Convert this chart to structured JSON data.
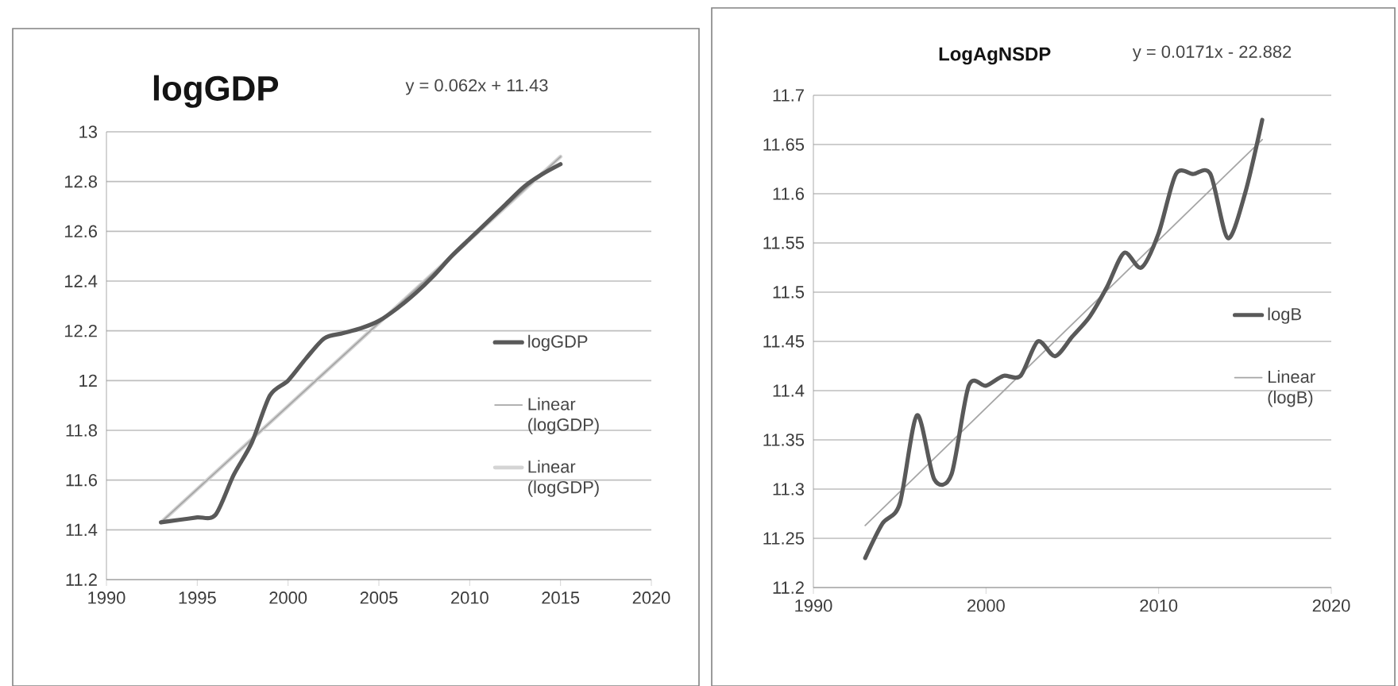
{
  "chart_data": [
    {
      "type": "line",
      "title": "logGDP",
      "annotations": [
        "y = 0.062x + 11.43"
      ],
      "series": [
        {
          "name": "logGDP",
          "color": "#595959",
          "x": [
            1993,
            1994,
            1995,
            1996,
            1997,
            1998,
            1999,
            2000,
            2001,
            2002,
            2003,
            2004,
            2005,
            2006,
            2007,
            2008,
            2009,
            2010,
            2011,
            2012,
            2013,
            2014,
            2015
          ],
          "values": [
            11.43,
            11.44,
            11.45,
            11.46,
            11.62,
            11.75,
            11.94,
            12.0,
            12.09,
            12.17,
            12.19,
            12.21,
            12.24,
            12.29,
            12.35,
            12.42,
            12.5,
            12.57,
            12.64,
            12.71,
            12.78,
            12.83,
            12.87
          ]
        },
        {
          "name": "Linear (logGDP)",
          "color": "#a6a6a6",
          "x": [
            1993,
            2015
          ],
          "values": [
            11.43,
            12.9
          ]
        },
        {
          "name": "Linear (logGDP)",
          "color": "#d4d4d4",
          "x": [
            1993,
            2015
          ],
          "values": [
            11.43,
            12.9
          ]
        }
      ],
      "xlim": [
        1990,
        2020
      ],
      "ylim": [
        11.2,
        13
      ],
      "xticks": [
        1990,
        1995,
        2000,
        2005,
        2010,
        2015,
        2020
      ],
      "yticks": [
        11.2,
        11.4,
        11.6,
        11.8,
        12,
        12.2,
        12.4,
        12.6,
        12.8,
        13
      ],
      "grid": "y",
      "legend": "right"
    },
    {
      "type": "line",
      "title": "LogAgNSDP",
      "annotations": [
        "y = 0.0171x - 22.882"
      ],
      "series": [
        {
          "name": "logB",
          "color": "#595959",
          "x": [
            1993,
            1994,
            1995,
            1996,
            1997,
            1998,
            1999,
            2000,
            2001,
            2002,
            2003,
            2004,
            2005,
            2006,
            2007,
            2008,
            2009,
            2010,
            2011,
            2012,
            2013,
            2014,
            2015,
            2016
          ],
          "values": [
            11.23,
            11.265,
            11.285,
            11.375,
            11.31,
            11.315,
            11.405,
            11.405,
            11.415,
            11.415,
            11.45,
            11.435,
            11.455,
            11.475,
            11.505,
            11.54,
            11.525,
            11.56,
            11.62,
            11.62,
            11.62,
            11.555,
            11.6,
            11.675
          ]
        },
        {
          "name": "Linear (logB)",
          "color": "#a6a6a6",
          "x": [
            1993,
            2016
          ],
          "values": [
            11.263,
            11.655
          ]
        }
      ],
      "xlim": [
        1990,
        2020
      ],
      "ylim": [
        11.2,
        11.7
      ],
      "xticks": [
        1990,
        2000,
        2010,
        2020
      ],
      "yticks": [
        11.2,
        11.25,
        11.3,
        11.35,
        11.4,
        11.45,
        11.5,
        11.55,
        11.6,
        11.65,
        11.7
      ],
      "grid": "y",
      "legend": "right"
    }
  ]
}
